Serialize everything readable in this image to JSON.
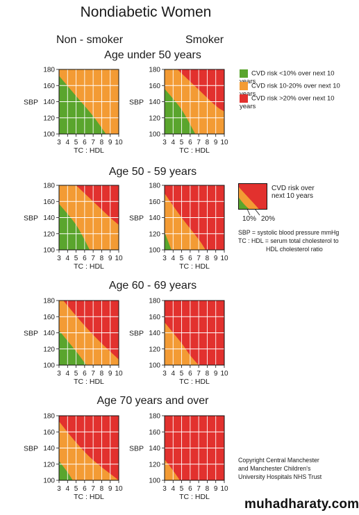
{
  "title": "Nondiabetic Women",
  "columns": [
    "Non - smoker",
    "Smoker"
  ],
  "colors": {
    "green": "#5aa52d",
    "orange": "#f39b34",
    "red": "#e2312e",
    "grid": "#ffffff",
    "frame": "#111111"
  },
  "legend": {
    "items": [
      {
        "color": "#5aa52d",
        "label": "CVD risk <10% over next 10 years"
      },
      {
        "color": "#f39b34",
        "label": "CVD risk 10-20% over next 10 years"
      },
      {
        "color": "#e2312e",
        "label": "CVD risk >20% over next 10 years"
      }
    ],
    "mini": {
      "title_line1": "CVD risk over",
      "title_line2": "next 10 years",
      "tick1": "10%",
      "tick2": "20%"
    },
    "notes": [
      "SBP = systolic blood pressure mmHg",
      "TC : HDL = serum total cholesterol to",
      "HDL cholesterol ratio"
    ]
  },
  "copyright": [
    "Copyright Central Manchester",
    "and Manchester Children's",
    "University Hospitals NHS Trust"
  ],
  "watermark": "muhadharaty.com",
  "chart_data": {
    "type": "heatmap",
    "ylabel": "SBP",
    "xlabel": "TC : HDL",
    "x_ticks": [
      3,
      4,
      5,
      6,
      7,
      8,
      9,
      10
    ],
    "y_ticks": [
      100,
      120,
      140,
      160,
      180
    ],
    "xlim": [
      3,
      10
    ],
    "ylim": [
      100,
      180
    ],
    "groups": [
      {
        "title": "Age under 50 years",
        "panels": [
          {
            "column": "Non - smoker",
            "green_orange_boundary": [
              [
                3,
                172
              ],
              [
                5,
                147
              ],
              [
                7,
                122
              ],
              [
                8.5,
                100
              ]
            ],
            "orange_red_boundary": null
          },
          {
            "column": "Smoker",
            "green_orange_boundary": [
              [
                3,
                156
              ],
              [
                5,
                130
              ],
              [
                6.6,
                100
              ]
            ],
            "orange_red_boundary": [
              [
                4.5,
                180
              ],
              [
                6.5,
                160
              ],
              [
                9,
                135
              ],
              [
                10,
                128
              ]
            ]
          }
        ]
      },
      {
        "title": "Age 50 - 59 years",
        "panels": [
          {
            "column": "Non - smoker",
            "green_orange_boundary": [
              [
                3,
                157
              ],
              [
                5,
                131
              ],
              [
                6.6,
                100
              ]
            ],
            "orange_red_boundary": [
              [
                5,
                180
              ],
              [
                7,
                160
              ],
              [
                9,
                140
              ],
              [
                10,
                131
              ]
            ]
          },
          {
            "column": "Smoker",
            "green_orange_boundary": [
              [
                3,
                122
              ],
              [
                3.8,
                100
              ]
            ],
            "orange_red_boundary": [
              [
                3,
                170
              ],
              [
                5,
                140
              ],
              [
                7,
                113
              ],
              [
                7.8,
                100
              ]
            ]
          }
        ]
      },
      {
        "title": "Age 60 - 69 years",
        "panels": [
          {
            "column": "Non - smoker",
            "green_orange_boundary": [
              [
                3,
                143
              ],
              [
                5,
                117
              ],
              [
                6.2,
                100
              ]
            ],
            "orange_red_boundary": [
              [
                3.5,
                180
              ],
              [
                5.5,
                155
              ],
              [
                7.5,
                132
              ],
              [
                10,
                107
              ]
            ]
          },
          {
            "column": "Smoker",
            "green_orange_boundary": null,
            "orange_red_boundary": [
              [
                3,
                153
              ],
              [
                5,
                127
              ],
              [
                6,
                112
              ],
              [
                7,
                100
              ]
            ]
          }
        ]
      },
      {
        "title": "Age 70 years and over",
        "panels": [
          {
            "column": "Non - smoker",
            "green_orange_boundary": [
              [
                3,
                124
              ],
              [
                4,
                110
              ],
              [
                4.6,
                100
              ]
            ],
            "orange_red_boundary": [
              [
                3,
                173
              ],
              [
                5,
                147
              ],
              [
                7,
                125
              ],
              [
                10,
                100
              ]
            ]
          },
          {
            "column": "Smoker",
            "green_orange_boundary": null,
            "orange_red_boundary": [
              [
                3,
                126
              ],
              [
                4,
                112
              ],
              [
                4.8,
                100
              ]
            ]
          }
        ]
      }
    ]
  }
}
